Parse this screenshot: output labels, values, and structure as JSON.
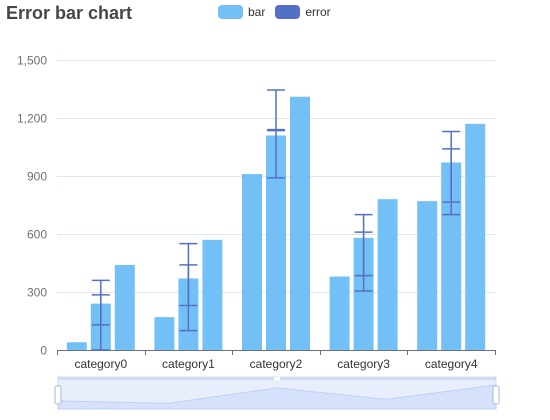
{
  "chart_data": {
    "type": "bar",
    "title": "Error bar chart",
    "xlabel": "",
    "ylabel": "",
    "categories": [
      "category0",
      "category1",
      "category2",
      "category3",
      "category4"
    ],
    "ylim": [
      0,
      1500
    ],
    "y_ticks": [
      0,
      300,
      600,
      900,
      1200,
      1500
    ],
    "y_tick_labels": [
      "0",
      "300",
      "600",
      "900",
      "1,200",
      "1,500"
    ],
    "grid": true,
    "legend_position": "top-center",
    "legend": [
      {
        "name": "bar",
        "color": "#73c0f7"
      },
      {
        "name": "error",
        "color": "#5470c6"
      }
    ],
    "series": [
      {
        "values": [
          40,
          170,
          910,
          380,
          770
        ],
        "error": null
      },
      {
        "values": [
          240,
          370,
          1110,
          580,
          970
        ],
        "error": [
          [
            130,
            360
          ],
          [
            230,
            550
          ],
          [
            1135,
            1345
          ],
          [
            385,
            700
          ],
          [
            765,
            1130
          ]
        ]
      },
      {
        "values": [
          440,
          570,
          1310,
          780,
          1170
        ],
        "error": null
      }
    ],
    "extra_error_bars": [
      [
        {
          "x": 0,
          "low": 0,
          "high": 285
        }
      ],
      [
        {
          "x": 1,
          "low": 100,
          "high": 440
        }
      ],
      [
        {
          "x": 2,
          "low": 890,
          "high": 1140
        }
      ],
      [
        {
          "x": 3,
          "low": 305,
          "high": 610
        }
      ],
      [
        {
          "x": 4,
          "low": 700,
          "high": 1040
        }
      ]
    ],
    "zoom_preview": [
      250,
      150,
      780,
      310,
      900
    ]
  },
  "colors": {
    "bar": "#73c0f7",
    "error": "#5470c6",
    "axis": "#6e7079",
    "grid": "#e0e6f1",
    "label": "#6e7079"
  }
}
